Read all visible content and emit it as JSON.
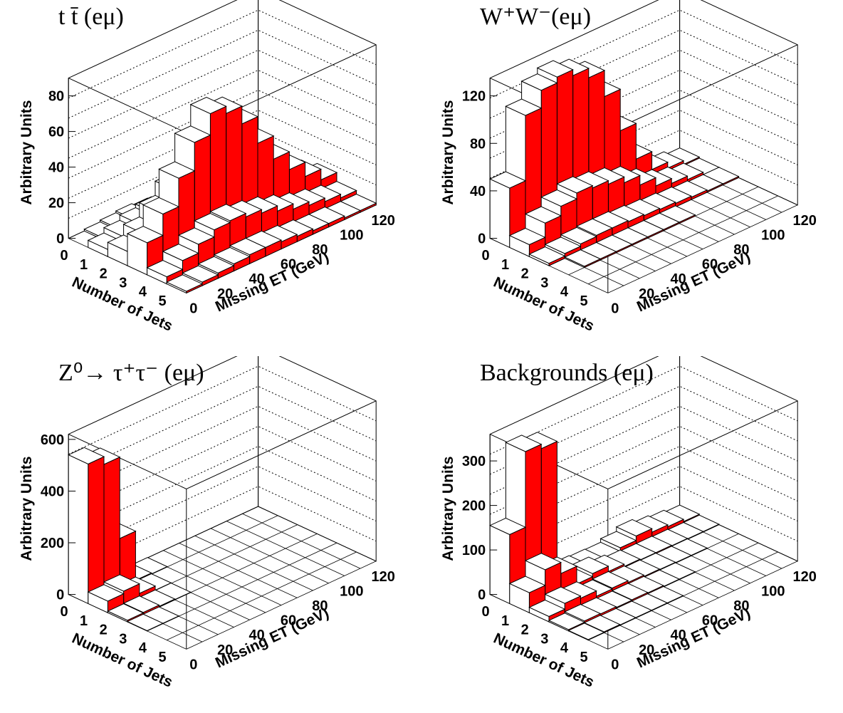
{
  "panels": [
    {
      "title": "t t̄ (eμ)"
    },
    {
      "title": "W⁺W⁻(eμ)"
    },
    {
      "title": "Z⁰→ τ⁺τ⁻ (eμ)"
    },
    {
      "title": "Backgrounds (eμ)"
    }
  ],
  "style": {
    "bar_side_color": "#ff0000",
    "bar_top_color": "#ffffff",
    "edge_color": "#000000"
  },
  "chart_data": [
    {
      "type": "bar3d",
      "title": "t t̄ (eμ)",
      "xlabel": "Number of Jets",
      "ylabel": "Missing ET (GeV)",
      "zlabel": "Arbitrary Units",
      "x_ticks": [
        "0",
        "1",
        "2",
        "3",
        "4",
        "5"
      ],
      "y_ticks": [
        "0",
        "20",
        "40",
        "60",
        "80",
        "100",
        "120"
      ],
      "z_ticks": [
        0,
        20,
        40,
        60,
        80
      ],
      "zlim": [
        0,
        90
      ],
      "grid": true,
      "jets": [
        0,
        1,
        2,
        3,
        4,
        5
      ],
      "met_bins": [
        5,
        15,
        25,
        35,
        45,
        55,
        65,
        75,
        85,
        95,
        105,
        115
      ],
      "values": [
        [
          0,
          1,
          2,
          3,
          2,
          1,
          1,
          0,
          0,
          0,
          0,
          0
        ],
        [
          4,
          7,
          10,
          12,
          11,
          9,
          7,
          5,
          3,
          2,
          1,
          0
        ],
        [
          8,
          14,
          22,
          30,
          33,
          30,
          25,
          18,
          12,
          8,
          5,
          3
        ],
        [
          18,
          30,
          46,
          62,
          74,
          70,
          60,
          45,
          32,
          22,
          14,
          8
        ],
        [
          4,
          9,
          14,
          18,
          19,
          17,
          15,
          12,
          9,
          7,
          5,
          3
        ],
        [
          1,
          2,
          3,
          4,
          5,
          5,
          4,
          3,
          2,
          2,
          1,
          1
        ]
      ]
    },
    {
      "type": "bar3d",
      "title": "W⁺W⁻(eμ)",
      "xlabel": "Number of Jets",
      "ylabel": "Missing ET (GeV)",
      "zlabel": "Arbitrary Units",
      "x_ticks": [
        "0",
        "1",
        "2",
        "3",
        "4",
        "5"
      ],
      "y_ticks": [
        "0",
        "20",
        "40",
        "60",
        "80",
        "100",
        "120"
      ],
      "z_ticks": [
        0,
        40,
        80,
        120
      ],
      "zlim": [
        0,
        135
      ],
      "grid": true,
      "jets": [
        0,
        1,
        2,
        3,
        4,
        5
      ],
      "met_bins": [
        5,
        15,
        25,
        35,
        45,
        55,
        65,
        75,
        85,
        95,
        105,
        115
      ],
      "values": [
        [
          50,
          105,
          120,
          125,
          120,
          112,
          90,
          55,
          25,
          10,
          5,
          2
        ],
        [
          10,
          22,
          30,
          35,
          33,
          30,
          25,
          17,
          10,
          6,
          3,
          1
        ],
        [
          2,
          4,
          6,
          7,
          7,
          6,
          5,
          4,
          3,
          2,
          1,
          1
        ],
        [
          0,
          1,
          1,
          1,
          1,
          1,
          1,
          1,
          0,
          0,
          0,
          0
        ],
        [
          0,
          0,
          0,
          0,
          0,
          0,
          0,
          0,
          0,
          0,
          0,
          0
        ],
        [
          0,
          0,
          0,
          0,
          0,
          0,
          0,
          0,
          0,
          0,
          0,
          0
        ]
      ]
    },
    {
      "type": "bar3d",
      "title": "Z⁰→ τ⁺τ⁻ (eμ)",
      "xlabel": "Number of Jets",
      "ylabel": "Missing ET (GeV)",
      "zlabel": "Arbitrary Units",
      "x_ticks": [
        "0",
        "1",
        "2",
        "3",
        "4",
        "5"
      ],
      "y_ticks": [
        "0",
        "20",
        "40",
        "60",
        "80",
        "100",
        "120"
      ],
      "z_ticks": [
        0,
        200,
        400,
        600
      ],
      "zlim": [
        0,
        620
      ],
      "grid": true,
      "jets": [
        0,
        1,
        2,
        3,
        4,
        5
      ],
      "met_bins": [
        5,
        15,
        25,
        35,
        45,
        55,
        65,
        75,
        85,
        95,
        105,
        115
      ],
      "values": [
        [
          540,
          510,
          195,
          5,
          1,
          0,
          0,
          0,
          0,
          0,
          0,
          0
        ],
        [
          45,
          55,
          18,
          2,
          0,
          0,
          0,
          0,
          0,
          0,
          0,
          0
        ],
        [
          6,
          8,
          3,
          1,
          0,
          0,
          0,
          0,
          0,
          0,
          0,
          0
        ],
        [
          1,
          1,
          0,
          0,
          0,
          0,
          0,
          0,
          0,
          0,
          0,
          0
        ],
        [
          0,
          0,
          0,
          0,
          0,
          0,
          0,
          0,
          0,
          0,
          0,
          0
        ],
        [
          0,
          0,
          0,
          0,
          0,
          0,
          0,
          0,
          0,
          0,
          0,
          0
        ]
      ]
    },
    {
      "type": "bar3d",
      "title": "Backgrounds (eμ)",
      "xlabel": "Number of Jets",
      "ylabel": "Missing ET (GeV)",
      "zlabel": "Arbitrary Units",
      "x_ticks": [
        "0",
        "1",
        "2",
        "3",
        "4",
        "5"
      ],
      "y_ticks": [
        "0",
        "20",
        "40",
        "60",
        "80",
        "100",
        "120"
      ],
      "z_ticks": [
        0,
        100,
        200,
        300
      ],
      "zlim": [
        0,
        360
      ],
      "grid": true,
      "jets": [
        0,
        1,
        2,
        3,
        4,
        5
      ],
      "met_bins": [
        5,
        15,
        25,
        35,
        45,
        55,
        65,
        75,
        85,
        95,
        105,
        115
      ],
      "values": [
        [
          155,
          325,
          315,
          15,
          5,
          3,
          2,
          10,
          20,
          12,
          8,
          3
        ],
        [
          45,
          80,
          55,
          15,
          22,
          10,
          5,
          3,
          3,
          2,
          1,
          1
        ],
        [
          12,
          25,
          20,
          8,
          10,
          6,
          3,
          2,
          1,
          1,
          0,
          0
        ],
        [
          3,
          6,
          5,
          3,
          4,
          3,
          1,
          1,
          0,
          0,
          0,
          0
        ],
        [
          1,
          2,
          1,
          1,
          1,
          1,
          0,
          0,
          0,
          0,
          0,
          0
        ],
        [
          0,
          0,
          0,
          0,
          0,
          0,
          0,
          0,
          0,
          0,
          0,
          0
        ]
      ]
    }
  ]
}
